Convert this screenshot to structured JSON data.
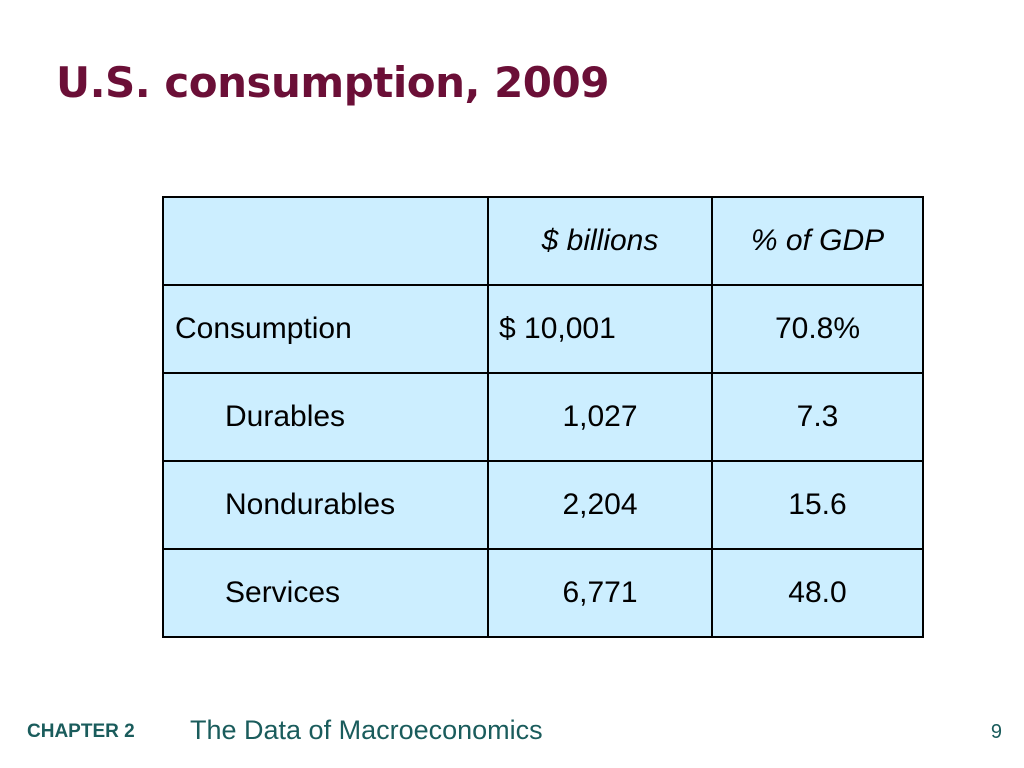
{
  "slide": {
    "title": "U.S. consumption, 2009"
  },
  "table": {
    "headers": [
      "",
      "$ billions",
      "% of GDP"
    ],
    "rows": [
      {
        "label": "Consumption",
        "billions": "$ 10,001",
        "pct_gdp": "70.8%"
      },
      {
        "label": "Durables",
        "billions": "1,027",
        "pct_gdp": "7.3"
      },
      {
        "label": "Nondurables",
        "billions": "2,204",
        "pct_gdp": "15.6"
      },
      {
        "label": "Services",
        "billions": "6,771",
        "pct_gdp": "48.0"
      }
    ],
    "fill_color": "#cceeff"
  },
  "footer": {
    "chapter": "CHAPTER 2",
    "book_title": "The Data of Macroeconomics",
    "page_number": "9"
  },
  "colors": {
    "title": "#6b0f37",
    "footer": "#1a5c5c"
  }
}
